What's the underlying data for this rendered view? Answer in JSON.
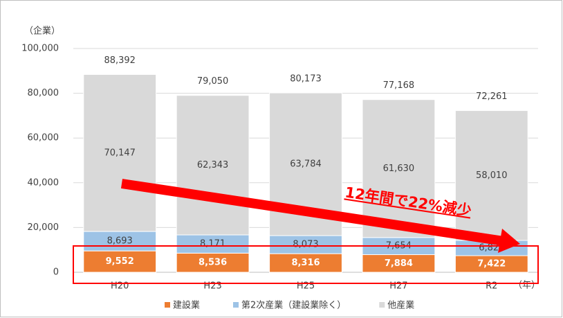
{
  "chart_data": {
    "type": "stacked_bar",
    "y_axis_label": "（企業）",
    "x_axis_label": "（年）",
    "annotation": "12年間で22%減少",
    "categories": [
      "H20",
      "H23",
      "H25",
      "H27",
      "R2"
    ],
    "series": [
      {
        "name": "建設業",
        "color": "#ed7d31",
        "values": [
          9552,
          8536,
          8316,
          7884,
          7422
        ],
        "value_labels": [
          "9,552",
          "8,536",
          "8,316",
          "7,884",
          "7,422"
        ]
      },
      {
        "name": "第2次産業（建設業除く）",
        "color": "#9dc3e6",
        "values": [
          8693,
          8171,
          8073,
          7654,
          6829
        ],
        "value_labels": [
          "8,693",
          "8,171",
          "8,073",
          "7,654",
          "6,829"
        ]
      },
      {
        "name": "他産業",
        "color": "#d9d9d9",
        "values": [
          70147,
          62343,
          63784,
          61630,
          58010
        ],
        "value_labels": [
          "70,147",
          "62,343",
          "63,784",
          "61,630",
          "58,010"
        ]
      }
    ],
    "totals": [
      88392,
      79050,
      80173,
      77168,
      72261
    ],
    "total_labels": [
      "88,392",
      "79,050",
      "80,173",
      "77,168",
      "72,261"
    ],
    "ylim": [
      0,
      100000
    ],
    "yticks": [
      0,
      {
        "value": 20000,
        "label": "20,000"
      },
      {
        "value": 40000,
        "label": "40,000"
      },
      {
        "value": 60000,
        "label": "60,000"
      },
      {
        "value": 80000,
        "label": "80,000"
      },
      {
        "value": 100000,
        "label": "100,000"
      }
    ],
    "grid": true
  }
}
